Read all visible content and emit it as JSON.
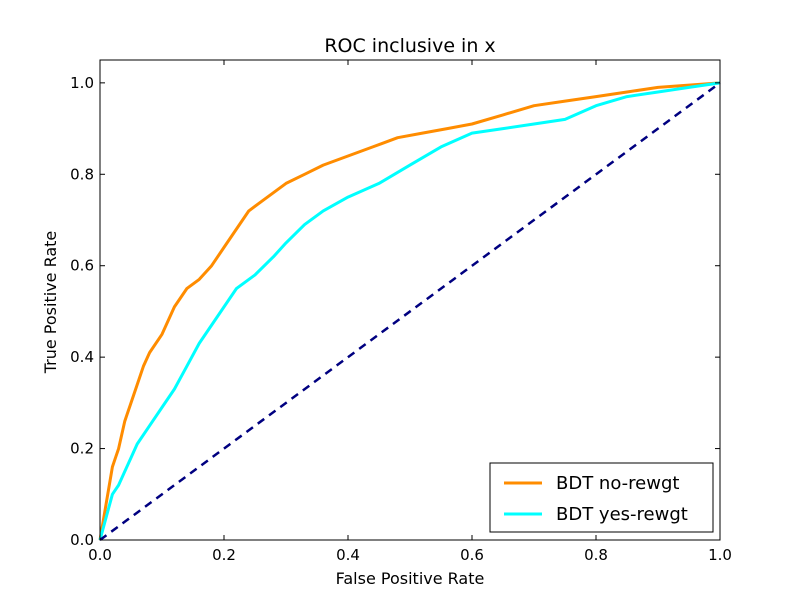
{
  "chart_data": {
    "type": "line",
    "title": "ROC inclusive in x",
    "xlabel": "False Positive Rate",
    "ylabel": "True Positive Rate",
    "xlim": [
      0.0,
      1.0
    ],
    "ylim": [
      0.0,
      1.05
    ],
    "x_ticks": [
      "0.0",
      "0.2",
      "0.4",
      "0.6",
      "0.8",
      "1.0"
    ],
    "y_ticks": [
      "0.0",
      "0.2",
      "0.4",
      "0.6",
      "0.8",
      "1.0"
    ],
    "grid": false,
    "legend_position": "lower-right",
    "series": [
      {
        "name": "BDT no-rewgt",
        "color": "#ff8c00",
        "style": "solid",
        "x": [
          0.0,
          0.005,
          0.01,
          0.015,
          0.02,
          0.025,
          0.03,
          0.04,
          0.05,
          0.06,
          0.07,
          0.08,
          0.1,
          0.12,
          0.14,
          0.16,
          0.18,
          0.2,
          0.22,
          0.24,
          0.26,
          0.28,
          0.3,
          0.33,
          0.36,
          0.4,
          0.44,
          0.48,
          0.52,
          0.56,
          0.6,
          0.65,
          0.7,
          0.75,
          0.8,
          0.85,
          0.9,
          0.95,
          1.0
        ],
        "y": [
          0.0,
          0.04,
          0.08,
          0.12,
          0.16,
          0.18,
          0.2,
          0.26,
          0.3,
          0.34,
          0.38,
          0.41,
          0.45,
          0.51,
          0.55,
          0.57,
          0.6,
          0.64,
          0.68,
          0.72,
          0.74,
          0.76,
          0.78,
          0.8,
          0.82,
          0.84,
          0.86,
          0.88,
          0.89,
          0.9,
          0.91,
          0.93,
          0.95,
          0.96,
          0.97,
          0.98,
          0.99,
          0.995,
          1.0
        ]
      },
      {
        "name": "BDT yes-rewgt",
        "color": "#00ffff",
        "style": "solid",
        "x": [
          0.0,
          0.01,
          0.02,
          0.03,
          0.04,
          0.05,
          0.06,
          0.08,
          0.1,
          0.12,
          0.14,
          0.16,
          0.18,
          0.2,
          0.22,
          0.25,
          0.28,
          0.3,
          0.33,
          0.36,
          0.4,
          0.45,
          0.5,
          0.55,
          0.6,
          0.65,
          0.7,
          0.75,
          0.8,
          0.85,
          0.9,
          0.95,
          1.0
        ],
        "y": [
          0.0,
          0.05,
          0.1,
          0.12,
          0.15,
          0.18,
          0.21,
          0.25,
          0.29,
          0.33,
          0.38,
          0.43,
          0.47,
          0.51,
          0.55,
          0.58,
          0.62,
          0.65,
          0.69,
          0.72,
          0.75,
          0.78,
          0.82,
          0.86,
          0.89,
          0.9,
          0.91,
          0.92,
          0.95,
          0.97,
          0.98,
          0.99,
          1.0
        ]
      },
      {
        "color": "#000080",
        "style": "dashed",
        "x": [
          0.0,
          1.0
        ],
        "y": [
          0.0,
          1.0
        ]
      }
    ]
  }
}
